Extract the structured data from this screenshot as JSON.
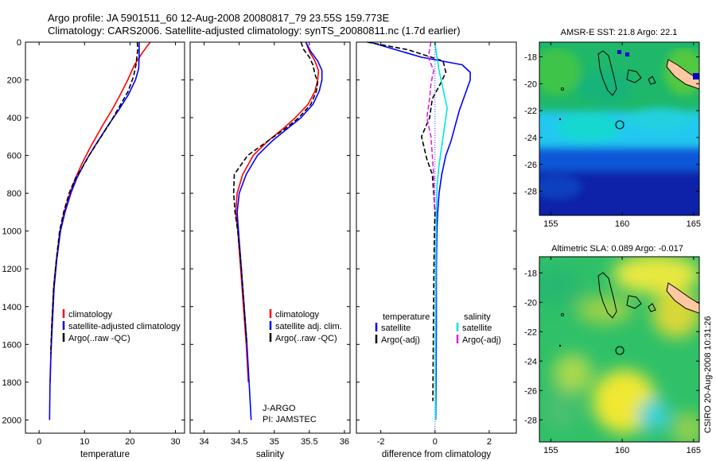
{
  "header": {
    "line1": "Argo profile: JA 5901511_60 12-Aug-2008 20080817_79 23.55S 159.773E",
    "line2": "Climatology: CARS2006. Satellite-adjusted climatology: synTS_20080811.nc (1.7d earlier)"
  },
  "stamp": "CSIRO 20-Aug-2008 10:31:26",
  "colors": {
    "climatology": "#ff0000",
    "satellite": "#0000ff",
    "argo": "#000000",
    "sal_satellite": "#00e5e5",
    "sal_argo": "#e020e0"
  },
  "chart_data": [
    {
      "type": "line",
      "xlabel": "temperature",
      "xticks": [
        "0",
        "10",
        "20",
        "30"
      ],
      "xlim": [
        -3,
        32
      ],
      "yticks": [
        "0",
        "200",
        "400",
        "600",
        "800",
        "1000",
        "1200",
        "1400",
        "1600",
        "1800",
        "2000"
      ],
      "ylim": [
        2070,
        0
      ],
      "legend": [
        "climatology",
        "satellite-adjusted climatology",
        "Argo(..raw -QC)"
      ],
      "series": [
        {
          "name": "climatology",
          "color": "#ff0000",
          "style": "solid",
          "x": [
            24.5,
            23.8,
            22.6,
            21.0,
            19.5,
            17.8,
            16.0,
            14.0,
            12.6,
            11.2,
            9.5,
            8.0,
            6.8,
            5.5,
            4.6,
            3.8,
            3.2,
            2.8,
            2.6,
            2.45
          ],
          "y": [
            0,
            20,
            60,
            120,
            200,
            280,
            360,
            440,
            500,
            560,
            640,
            720,
            800,
            900,
            1000,
            1150,
            1300,
            1500,
            1650,
            1800
          ]
        },
        {
          "name": "satellite-adjusted climatology",
          "color": "#0000ff",
          "style": "solid",
          "x": [
            22.0,
            22.0,
            22.0,
            21.9,
            21.2,
            19.6,
            17.5,
            15.2,
            13.6,
            12.0,
            10.0,
            8.3,
            7.0,
            5.7,
            4.7,
            3.9,
            3.3,
            2.9,
            2.6,
            2.4,
            2.3
          ],
          "y": [
            0,
            40,
            80,
            140,
            200,
            280,
            360,
            440,
            500,
            560,
            640,
            720,
            800,
            900,
            1000,
            1150,
            1300,
            1500,
            1650,
            1800,
            2000
          ]
        },
        {
          "name": "Argo(..raw -QC)",
          "color": "#000000",
          "style": "dashed",
          "x": [
            21.6,
            21.7,
            21.5,
            21.3,
            20.8,
            19.6,
            17.7,
            15.8,
            14.2,
            12.6,
            11.0,
            9.6,
            8.0,
            6.6,
            5.4,
            4.5,
            3.8,
            3.2,
            2.8,
            2.55
          ],
          "y": [
            0,
            40,
            80,
            120,
            180,
            260,
            340,
            420,
            480,
            540,
            600,
            660,
            720,
            800,
            900,
            1000,
            1150,
            1300,
            1500,
            1650
          ]
        }
      ],
      "legend_position": "lower-middle"
    },
    {
      "type": "line",
      "xlabel": "salinity",
      "xticks": [
        "34",
        "34.5",
        "35",
        "35.5",
        "36"
      ],
      "xlim": [
        33.8,
        36.08
      ],
      "yticks": [],
      "ylim": [
        2070,
        0
      ],
      "legend": [
        "climatology",
        "satellite adj. clim.",
        "Argo(..raw -QC)"
      ],
      "annotation": [
        "J-ARGO",
        "PI: JAMSTEC"
      ],
      "series": [
        {
          "name": "climatology",
          "color": "#ff0000",
          "style": "solid",
          "x": [
            35.45,
            35.5,
            35.58,
            35.63,
            35.62,
            35.58,
            35.48,
            35.3,
            35.12,
            34.92,
            34.7,
            34.55,
            34.47,
            34.45,
            34.48,
            34.52,
            34.56,
            34.6,
            34.63
          ],
          "y": [
            0,
            50,
            100,
            150,
            200,
            260,
            330,
            400,
            460,
            520,
            600,
            700,
            800,
            900,
            1000,
            1200,
            1400,
            1600,
            1800
          ]
        },
        {
          "name": "satellite adj. clim.",
          "color": "#0000ff",
          "style": "solid",
          "x": [
            35.45,
            35.52,
            35.62,
            35.68,
            35.68,
            35.64,
            35.55,
            35.38,
            35.18,
            34.98,
            34.76,
            34.6,
            34.5,
            34.47,
            34.49,
            34.53,
            34.57,
            34.61,
            34.64,
            34.67
          ],
          "y": [
            0,
            50,
            100,
            150,
            200,
            260,
            330,
            400,
            460,
            520,
            600,
            700,
            800,
            900,
            1000,
            1200,
            1400,
            1600,
            1800,
            2000
          ]
        },
        {
          "name": "Argo(..raw -QC)",
          "color": "#000000",
          "style": "dashed",
          "x": [
            35.38,
            35.42,
            35.5,
            35.55,
            35.58,
            35.62,
            35.6,
            35.52,
            35.35,
            35.15,
            34.92,
            34.62,
            34.43,
            34.42,
            34.44,
            34.48,
            34.53,
            34.57,
            34.61
          ],
          "y": [
            0,
            40,
            80,
            120,
            170,
            210,
            260,
            330,
            400,
            460,
            520,
            600,
            700,
            800,
            900,
            1000,
            1200,
            1400,
            1600
          ]
        }
      ],
      "legend_position": "lower-middle"
    },
    {
      "type": "line",
      "xlabel": "difference from climatology",
      "xticks": [
        "-2",
        "0",
        "2"
      ],
      "xlim": [
        -2.9,
        3.0
      ],
      "yticks": [],
      "ylim": [
        2070,
        0
      ],
      "legend_headers": [
        "temperature",
        "salinity"
      ],
      "legend": [
        "satellite",
        "Argo(-adj)",
        "satellite",
        "Argo(-adj)"
      ],
      "series": [
        {
          "name": "satellite",
          "group": "temperature",
          "color": "#0000ff",
          "style": "solid",
          "x": [
            -2.4,
            -0.5,
            1.0,
            1.3,
            1.3,
            1.1,
            0.9,
            0.75,
            0.6,
            0.4,
            0.25,
            0.15,
            0.1,
            0.07,
            0.05,
            0.05,
            0.04,
            0.03
          ],
          "y": [
            0,
            80,
            120,
            160,
            200,
            280,
            360,
            440,
            520,
            600,
            700,
            800,
            900,
            1000,
            1200,
            1500,
            1800,
            2000
          ]
        },
        {
          "name": "Argo(-adj)",
          "group": "temperature",
          "color": "#000000",
          "style": "dashed",
          "x": [
            -2.5,
            -1.0,
            0.3,
            0.4,
            0.2,
            -0.1,
            -0.2,
            -0.5,
            -0.3,
            -0.1,
            -0.05,
            0.0,
            -0.02,
            -0.04,
            -0.06,
            -0.08
          ],
          "y": [
            0,
            40,
            100,
            160,
            220,
            300,
            400,
            500,
            620,
            700,
            800,
            900,
            1000,
            1200,
            1500,
            1900
          ]
        },
        {
          "name": "satellite",
          "group": "salinity",
          "color": "#00e5e5",
          "style": "solid",
          "x": [
            0.0,
            0.05,
            0.15,
            0.3,
            0.45,
            0.35,
            0.25,
            0.15,
            0.08,
            0.05,
            0.03,
            0.02,
            0.02
          ],
          "y": [
            0,
            60,
            150,
            250,
            350,
            450,
            550,
            650,
            750,
            900,
            1200,
            1600,
            2000
          ]
        },
        {
          "name": "Argo(-adj)",
          "group": "salinity",
          "color": "#e020e0",
          "style": "dashed",
          "x": [
            -0.15,
            -0.25,
            -0.05,
            -0.15,
            -0.2,
            -0.3,
            -0.15,
            -0.1,
            -0.05,
            -0.03,
            -0.02
          ],
          "y": [
            0,
            80,
            150,
            220,
            300,
            400,
            500,
            600,
            700,
            800,
            900
          ]
        }
      ],
      "legend_position": "lower-middle"
    },
    {
      "type": "heatmap",
      "title": "AMSR-E SST: 21.8 Argo: 22.1",
      "xticks": [
        "155",
        "160",
        "165"
      ],
      "yticks": [
        "-18",
        "-20",
        "-22",
        "-24",
        "-26",
        "-28"
      ],
      "xlim": [
        154.2,
        165.4
      ],
      "ylim": [
        -29.8,
        -16.9
      ],
      "marker": {
        "lon": 159.773,
        "lat": -23.55
      }
    },
    {
      "type": "heatmap",
      "title": "Altimetric SLA: 0.089 Argo: -0.017",
      "xticks": [
        "155",
        "160",
        "165"
      ],
      "yticks": [
        "-18",
        "-20",
        "-22",
        "-24",
        "-26",
        "-28"
      ],
      "xlim": [
        154.2,
        165.4
      ],
      "ylim": [
        -29.5,
        -16.9
      ],
      "marker": {
        "lon": 159.773,
        "lat": -23.55
      }
    }
  ]
}
